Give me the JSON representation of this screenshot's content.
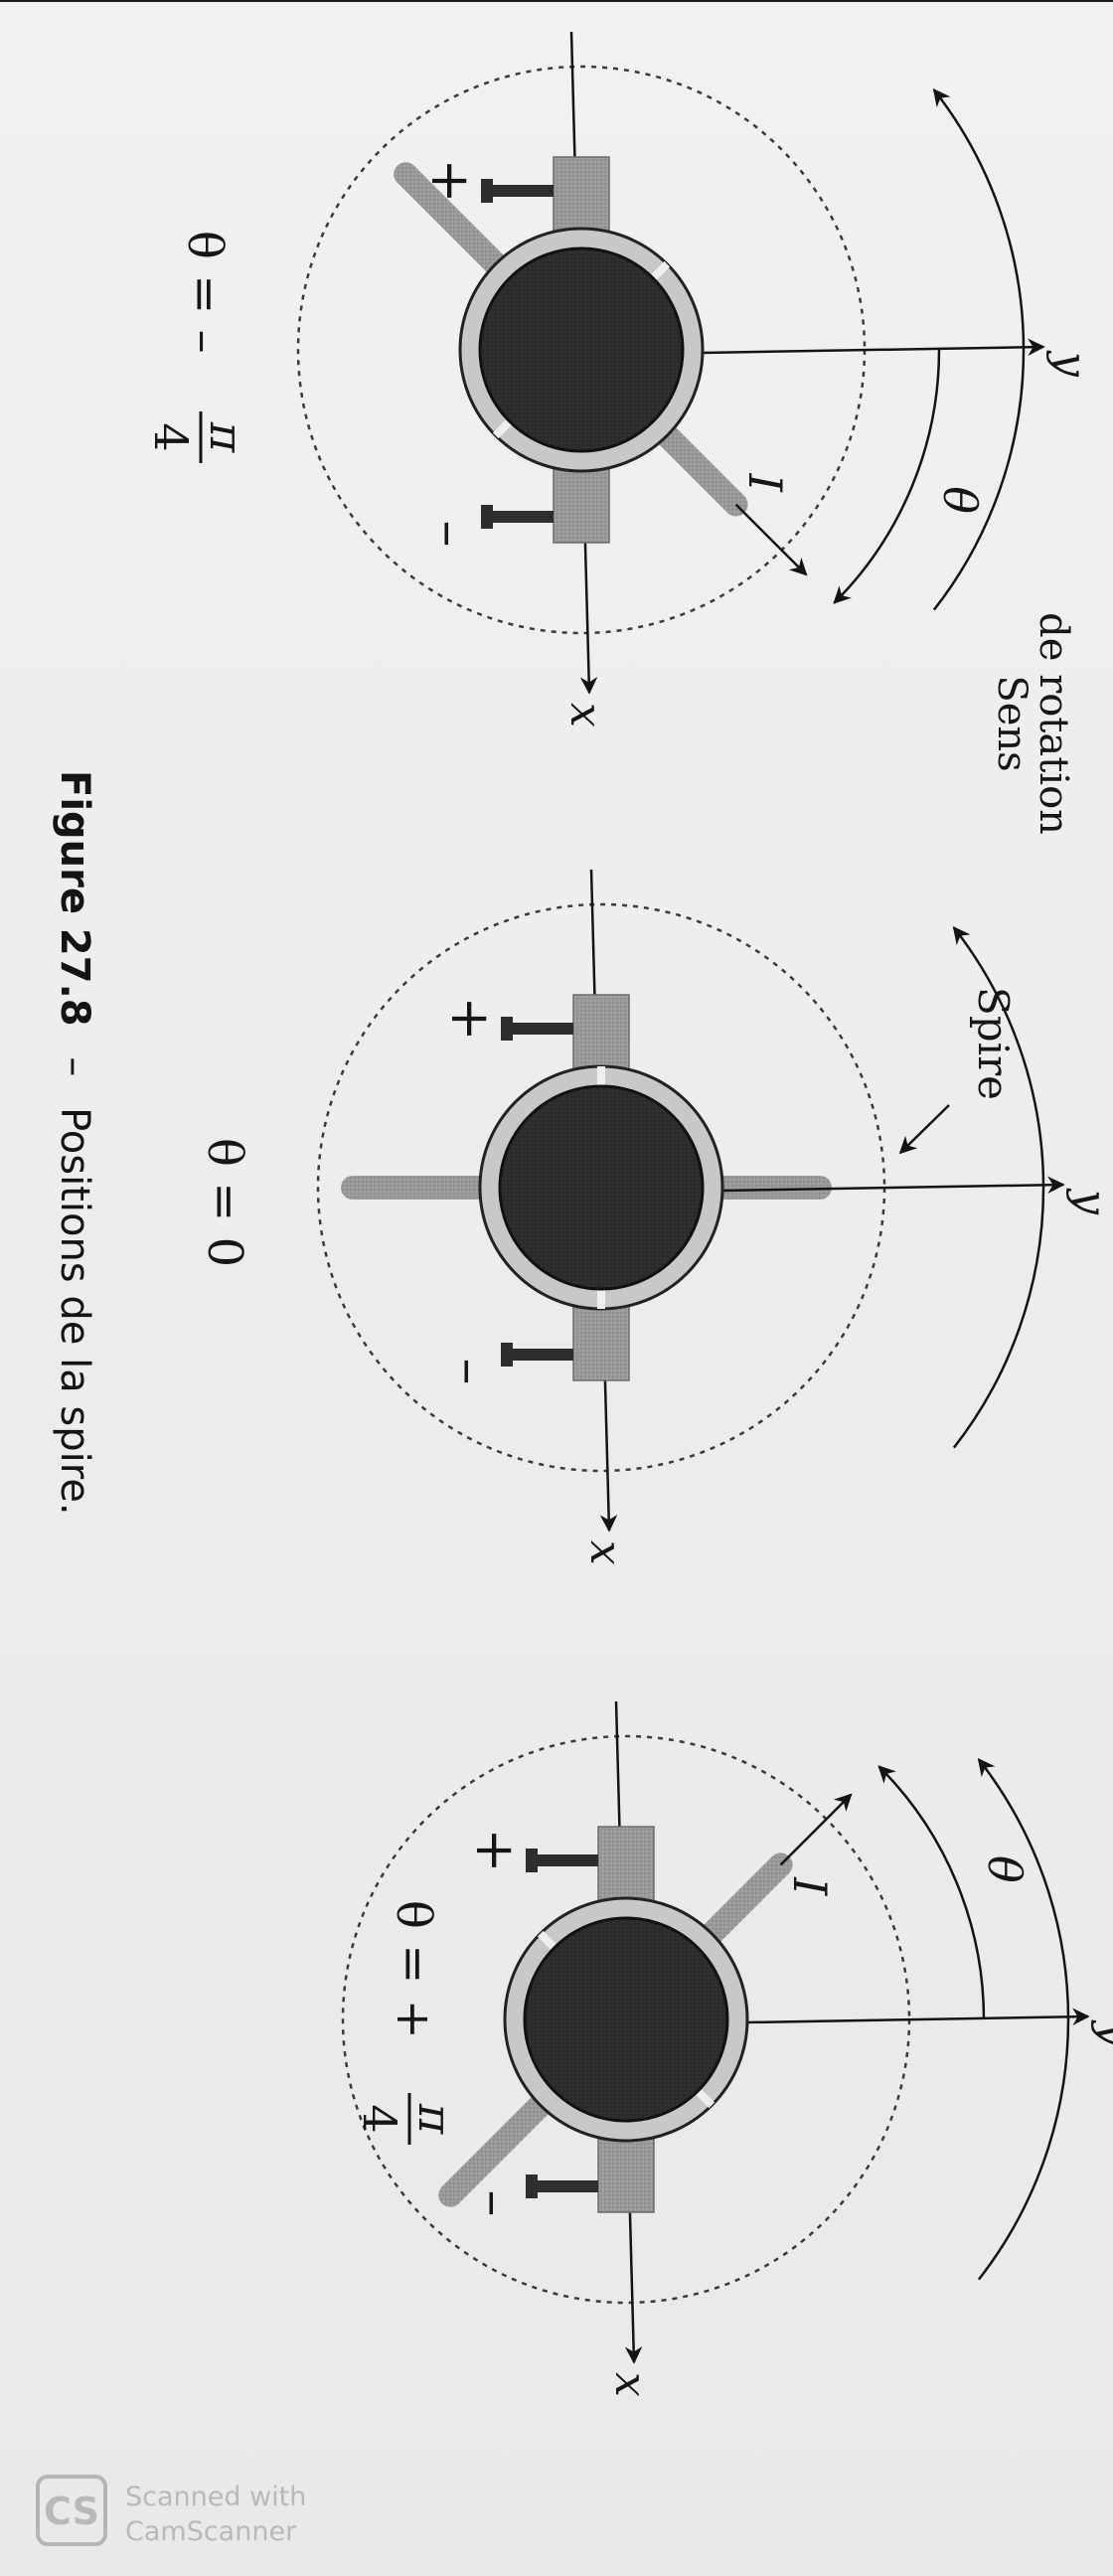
{
  "labels": {
    "axis_x": "x",
    "axis_y": "y",
    "theta": "θ",
    "current": "I",
    "plus": "+",
    "minus": "–",
    "sens_line1": "Sens",
    "sens_line2": "de rotation",
    "spire": "Spire"
  },
  "positions": [
    {
      "name": "theta-minus-pi-4",
      "label_prefix": "θ = –",
      "numerator": "π",
      "denominator": "4",
      "angle_deg": -45
    },
    {
      "name": "theta-zero",
      "label_prefix": "θ = 0",
      "numerator": "",
      "denominator": "",
      "angle_deg": 0
    },
    {
      "name": "theta-plus-pi-4",
      "label_prefix": "θ = +",
      "numerator": "π",
      "denominator": "4",
      "angle_deg": 45
    }
  ],
  "caption": {
    "number": "Figure 27.8",
    "dash": "–",
    "text": "Positions de la spire."
  },
  "watermark": {
    "logo": "CS",
    "line1": "Scanned with",
    "line2": "CamScanner"
  },
  "colors": {
    "rotor": "#2a2a2a",
    "ring": "#c8c8c8",
    "brush": "#8e8e8e",
    "coil": "#9c9c9c",
    "ink": "#141414"
  }
}
